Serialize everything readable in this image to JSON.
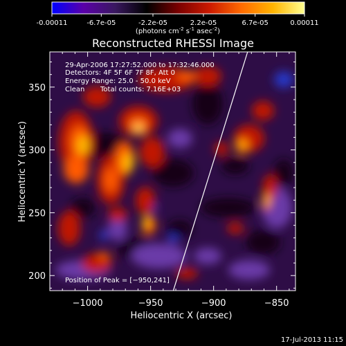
{
  "colorbar": {
    "tick_labels": [
      "-0.00011",
      "-6.7e-05",
      "-2.2e-05",
      "2.2e-05",
      "6.7e-05",
      "0.00011"
    ],
    "tick_values": [
      -0.00011,
      -6.7e-05,
      -2.2e-05,
      2.2e-05,
      6.7e-05,
      0.00011
    ],
    "range": [
      -0.00011,
      0.00011
    ],
    "units": {
      "prefix": "(photons cm",
      "sup1": "-2",
      "mid": " s",
      "sup2": "-1",
      "mid2": " asec",
      "sup3": "-2",
      "suffix": ")"
    },
    "gradient_colors": [
      "#0000ff",
      "#5a00a8",
      "#3a1860",
      "#000000",
      "#7a0000",
      "#cc1a00",
      "#ff6a00",
      "#ffb400",
      "#ffff90"
    ]
  },
  "chart_data": {
    "type": "heatmap",
    "title": "Reconstructed RHESSI Image",
    "xlabel": "Heliocentric X (arcsec)",
    "ylabel": "Heliocentric Y (arcsec)",
    "xlim": [
      -1030,
      -835
    ],
    "ylim": [
      188,
      378
    ],
    "x_ticks": [
      -1000,
      -950,
      -900,
      -850
    ],
    "x_tick_labels": [
      "−1000",
      "−950",
      "−900",
      "−850"
    ],
    "y_ticks": [
      200,
      250,
      300,
      350
    ],
    "y_tick_labels": [
      "200",
      "250",
      "300",
      "350"
    ],
    "peak_position": [
      -950,
      241
    ],
    "limb_line": [
      [
        -932,
        188
      ],
      [
        -873,
        378
      ]
    ],
    "annotations": [
      "29-Apr-2006 17:27:52.000 to 17:32:46.000",
      "Detectors: 4F 5F 6F 7F 8F, Att 0",
      "Energy Range: 25.0 - 50.0 keV",
      "Clean",
      "Total counts: 7.16E+03",
      "Position of Peak = [−950,241]"
    ]
  },
  "footer_timestamp": "17-Jul-2013 11:15"
}
